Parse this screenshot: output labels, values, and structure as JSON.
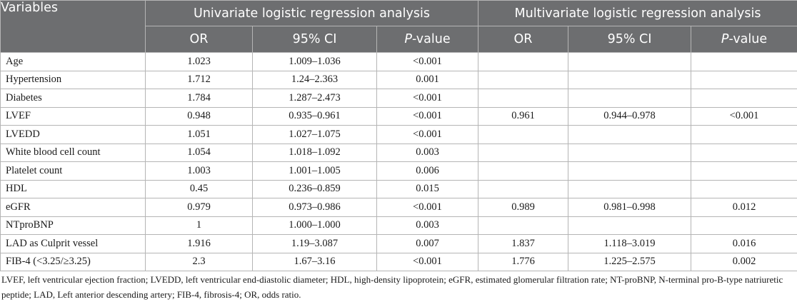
{
  "table": {
    "header": {
      "variables": "Variables",
      "univariate_group": "Univariate logistic regression analysis",
      "multivariate_group": "Multivariate logistic regression analysis",
      "or": "OR",
      "ci": "95% CI",
      "p_italic": "P",
      "p_suffix": "-value"
    },
    "rows": [
      {
        "variable": "Age",
        "u_or": "1.023",
        "u_ci": "1.009–1.036",
        "u_p": "<0.001",
        "m_or": "",
        "m_ci": "",
        "m_p": ""
      },
      {
        "variable": "Hypertension",
        "u_or": "1.712",
        "u_ci": "1.24–2.363",
        "u_p": "0.001",
        "m_or": "",
        "m_ci": "",
        "m_p": ""
      },
      {
        "variable": "Diabetes",
        "u_or": "1.784",
        "u_ci": "1.287–2.473",
        "u_p": "<0.001",
        "m_or": "",
        "m_ci": "",
        "m_p": ""
      },
      {
        "variable": "LVEF",
        "u_or": "0.948",
        "u_ci": "0.935–0.961",
        "u_p": "<0.001",
        "m_or": "0.961",
        "m_ci": "0.944–0.978",
        "m_p": "<0.001"
      },
      {
        "variable": "LVEDD",
        "u_or": "1.051",
        "u_ci": "1.027–1.075",
        "u_p": "<0.001",
        "m_or": "",
        "m_ci": "",
        "m_p": ""
      },
      {
        "variable": "White blood cell count",
        "u_or": "1.054",
        "u_ci": "1.018–1.092",
        "u_p": "0.003",
        "m_or": "",
        "m_ci": "",
        "m_p": ""
      },
      {
        "variable": "Platelet count",
        "u_or": "1.003",
        "u_ci": "1.001–1.005",
        "u_p": "0.006",
        "m_or": "",
        "m_ci": "",
        "m_p": ""
      },
      {
        "variable": "HDL",
        "u_or": "0.45",
        "u_ci": "0.236–0.859",
        "u_p": "0.015",
        "m_or": "",
        "m_ci": "",
        "m_p": ""
      },
      {
        "variable": "eGFR",
        "u_or": "0.979",
        "u_ci": "0.973–0.986",
        "u_p": "<0.001",
        "m_or": "0.989",
        "m_ci": "0.981–0.998",
        "m_p": "0.012"
      },
      {
        "variable": "NTproBNP",
        "u_or": "1",
        "u_ci": "1.000–1.000",
        "u_p": "0.003",
        "m_or": "",
        "m_ci": "",
        "m_p": ""
      },
      {
        "variable": "LAD as Culprit vessel",
        "u_or": "1.916",
        "u_ci": "1.19–3.087",
        "u_p": "0.007",
        "m_or": "1.837",
        "m_ci": "1.118–3.019",
        "m_p": "0.016"
      },
      {
        "variable": "FIB-4 (<3.25/≥3.25)",
        "u_or": "2.3",
        "u_ci": "1.67–3.16",
        "u_p": "<0.001",
        "m_or": "1.776",
        "m_ci": "1.225–2.575",
        "m_p": "0.002"
      }
    ]
  },
  "footnote": "LVEF, left ventricular ejection fraction; LVEDD, left ventricular end-diastolic diameter; HDL, high-density lipoprotein; eGFR, estimated glomerular filtration rate; NT-proBNP, N-terminal pro-B-type natriuretic peptide; LAD, Left anterior descending artery; FIB-4, fibrosis-4; OR, odds ratio."
}
